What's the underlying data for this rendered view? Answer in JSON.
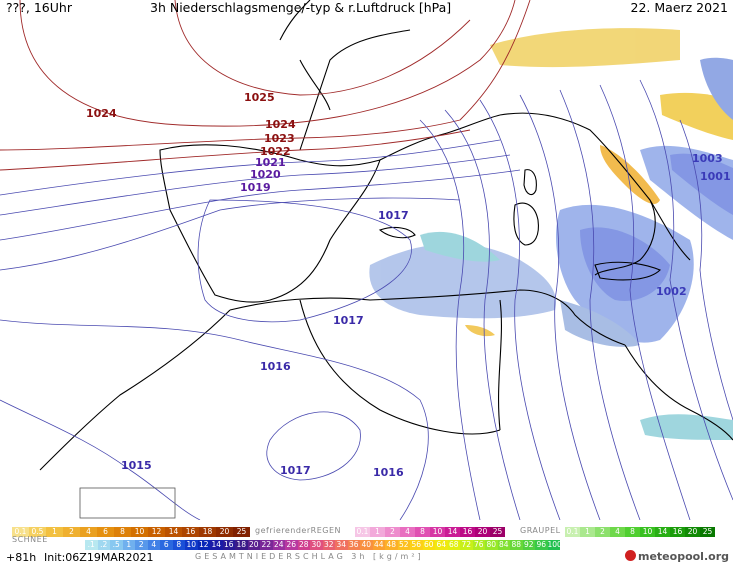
{
  "header": {
    "left": "???, 16Uhr",
    "title": "3h Niederschlagsmenge/-typ & r.Luftdruck [hPa]",
    "date": "22. Maerz 2021"
  },
  "isobar_labels": [
    {
      "value": "1025",
      "color": "#8b1010"
    },
    {
      "value": "1024",
      "color": "#8b1010"
    },
    {
      "value": "1024",
      "color": "#8b1010"
    },
    {
      "value": "1023",
      "color": "#8b1010"
    },
    {
      "value": "1022",
      "color": "#8b1010"
    },
    {
      "value": "1021",
      "color": "#5a1aa0"
    },
    {
      "value": "1020",
      "color": "#5a1aa0"
    },
    {
      "value": "1019",
      "color": "#5a1aa0"
    },
    {
      "value": "1017",
      "color": "#3a2aa8"
    },
    {
      "value": "1017",
      "color": "#3a2aa8"
    },
    {
      "value": "1016",
      "color": "#3a2aa8"
    },
    {
      "value": "1017",
      "color": "#3a2aa8"
    },
    {
      "value": "1016",
      "color": "#3a2aa8"
    },
    {
      "value": "1015",
      "color": "#3a2aa8"
    },
    {
      "value": "1003",
      "color": "#3a3ab8"
    },
    {
      "value": "1001",
      "color": "#3a3ab8"
    },
    {
      "value": "1002",
      "color": "#3a3ab8"
    }
  ],
  "legend": {
    "rain_values": [
      "0.1",
      "0.5",
      "1",
      "2",
      "4",
      "6",
      "8",
      "10",
      "12",
      "14",
      "16",
      "18",
      "20",
      "25"
    ],
    "freezing_title": "gefrierenderREGEN",
    "freezing_values": [
      "0.1",
      "1",
      "2",
      "4",
      "8",
      "10",
      "14",
      "16",
      "20",
      "25"
    ],
    "graupel_title": "GRAUPEL",
    "graupel_values": [
      "0.1",
      "1",
      "2",
      "4",
      "8",
      "10",
      "14",
      "16",
      "20",
      "25"
    ],
    "snow_title": "SCHNEE",
    "snow_values": [
      ".1",
      ".2",
      ".5",
      "1",
      "2",
      "4",
      "6",
      "8",
      "10",
      "12",
      "14",
      "16",
      "18",
      "20",
      "22",
      "24",
      "26",
      "28",
      "30",
      "32",
      "34",
      "36",
      "40",
      "44",
      "48",
      "52",
      "56",
      "60",
      "64",
      "68",
      "72",
      "76",
      "80",
      "84",
      "88",
      "92",
      "96",
      "100"
    ],
    "total_title": "GESAMTNIEDERSCHLAG 3h [kg/m²]"
  },
  "footer": {
    "forecast": "+81h",
    "init": "Init:06Z19MAR2021",
    "logo": "meteopool.org"
  }
}
